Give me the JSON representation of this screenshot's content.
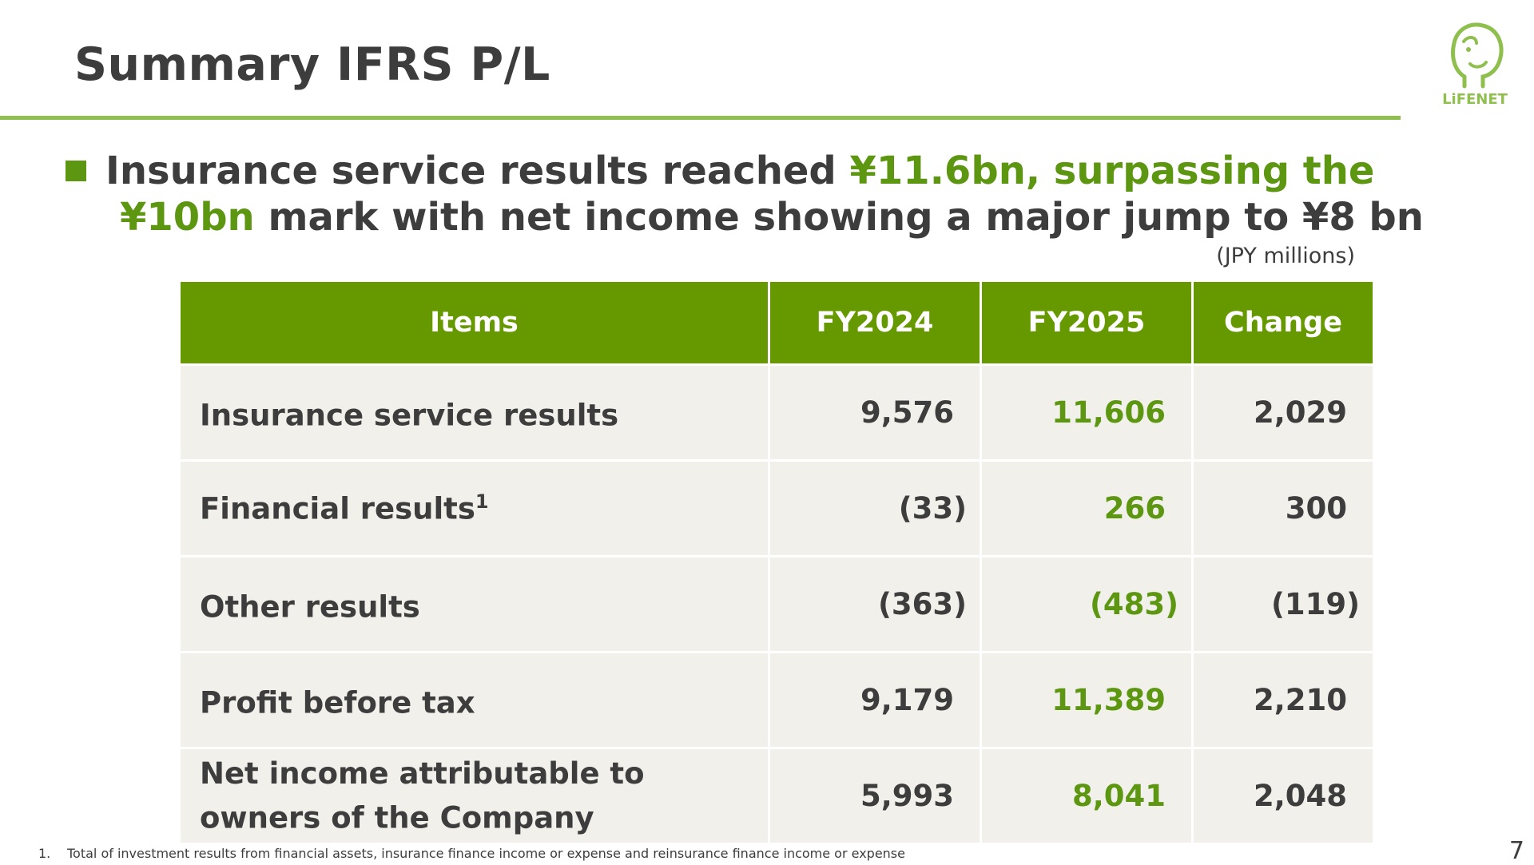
{
  "slide": {
    "title": "Summary IFRS P/L",
    "logo_text": "LiFENET",
    "headline": {
      "line1_pre": "Insurance service results reached ",
      "line1_highlight": "¥11.6bn, surpassing the",
      "line2_highlight": "¥10bn",
      "line2_post": " mark with net income showing a major jump to ¥8 bn"
    },
    "unit_note": "(JPY millions)",
    "page_number": "7"
  },
  "table": {
    "headers": [
      "Items",
      "FY2024",
      "FY2025",
      "Change"
    ],
    "rows": [
      {
        "item": "Insurance service results",
        "sup": "",
        "fy2024": "9,576",
        "fy2025": "11,606",
        "change": "2,029"
      },
      {
        "item": "Financial results",
        "sup": "1",
        "fy2024": "(33)",
        "fy2025": "266",
        "change": "300"
      },
      {
        "item": "Other results",
        "sup": "",
        "fy2024": "(363)",
        "fy2025": "(483)",
        "change": "(119)"
      },
      {
        "item": "Profit before tax",
        "sup": "",
        "fy2024": "9,179",
        "fy2025": "11,389",
        "change": "2,210"
      },
      {
        "item": "Net income attributable to owners of the Company",
        "sup": "",
        "fy2024": "5,993",
        "fy2025": "8,041",
        "change": "2,048"
      }
    ]
  },
  "footnote": {
    "number": "1.",
    "text": "Total of investment results from financial assets, insurance finance income or expense and reinsurance finance income or expense"
  },
  "colors": {
    "accent_green": "#669900",
    "text_green": "#5d9712",
    "rule_green": "#8fbf4d",
    "cell_bg": "#f1f0eb"
  }
}
